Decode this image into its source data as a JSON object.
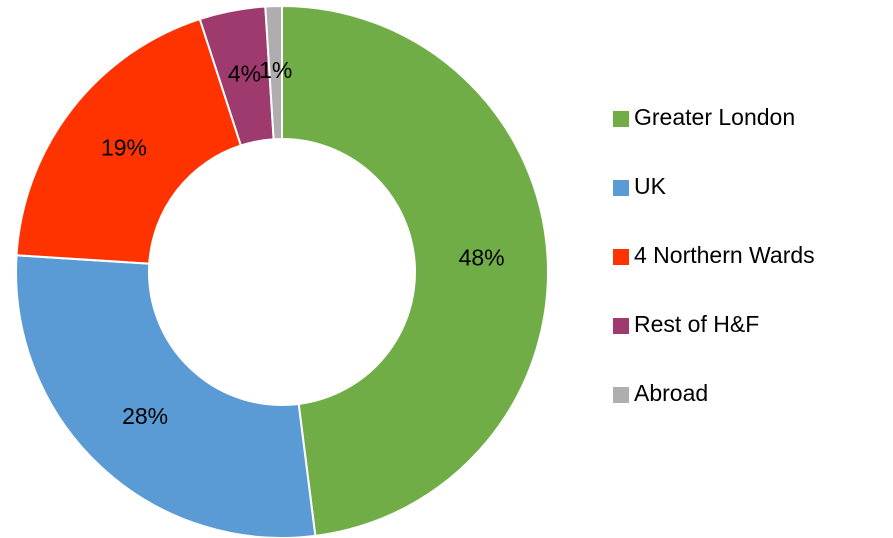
{
  "chart_data": {
    "type": "donut",
    "categories": [
      "Greater London",
      "UK",
      "4 Northern Wards",
      "Rest of H&F",
      "Abroad"
    ],
    "values": [
      48,
      28,
      19,
      4,
      1
    ],
    "value_labels": [
      "48%",
      "28%",
      "19%",
      "4%",
      "1%"
    ],
    "colors": [
      "#70ad47",
      "#5b9bd5",
      "#ff3300",
      "#9e3a6e",
      "#b0adae"
    ],
    "legend": "right"
  }
}
